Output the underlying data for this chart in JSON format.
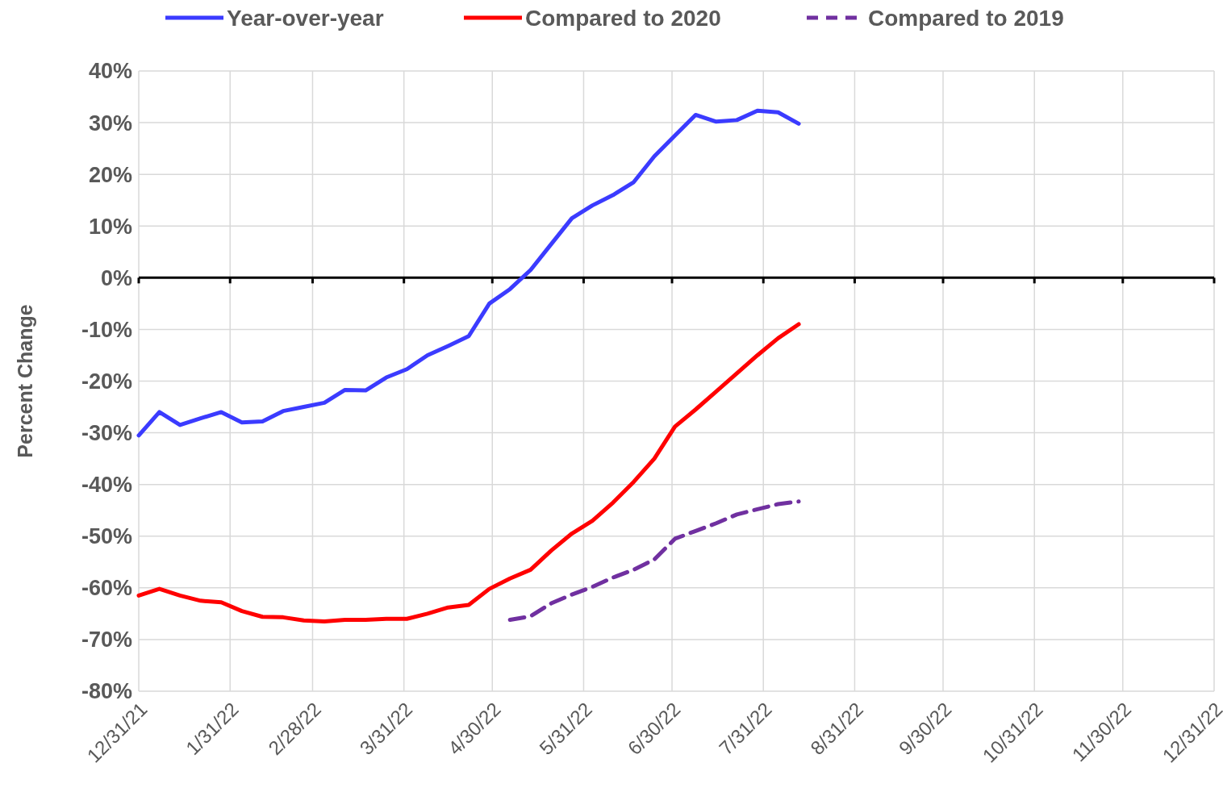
{
  "chart_data": {
    "type": "line",
    "ylabel": "Percent Change",
    "x": [
      "2021-12-31",
      "2022-01-07",
      "2022-01-14",
      "2022-01-21",
      "2022-01-28",
      "2022-02-04",
      "2022-02-11",
      "2022-02-18",
      "2022-02-25",
      "2022-03-04",
      "2022-03-11",
      "2022-03-18",
      "2022-03-25",
      "2022-04-01",
      "2022-04-08",
      "2022-04-15",
      "2022-04-22",
      "2022-04-29",
      "2022-05-06",
      "2022-05-13",
      "2022-05-20",
      "2022-05-27",
      "2022-06-03",
      "2022-06-10",
      "2022-06-17",
      "2022-06-24",
      "2022-07-01",
      "2022-07-08",
      "2022-07-15",
      "2022-07-22",
      "2022-07-29",
      "2022-08-05",
      "2022-08-12"
    ],
    "series": [
      {
        "name": "Year-over-year",
        "color": "#3b3bff",
        "line_style": "solid",
        "values": [
          -30.5,
          -26,
          -28.5,
          -27.2,
          -26,
          -28,
          -27.8,
          -25.8,
          -25,
          -24.2,
          -21.7,
          -21.8,
          -19.3,
          -17.7,
          -15,
          -13.2,
          -11.3,
          -5,
          -2.2,
          1.5,
          6.5,
          11.5,
          14,
          16,
          18.5,
          23.5,
          27.5,
          31.5,
          30.2,
          30.5,
          32.3,
          32,
          29.8
        ]
      },
      {
        "name": "Compared to 2020",
        "color": "#ff0000",
        "line_style": "solid",
        "values": [
          -61.5,
          -60.2,
          -61.5,
          -62.5,
          -62.8,
          -64.5,
          -65.6,
          -65.7,
          -66.3,
          -66.5,
          -66.2,
          -66.2,
          -66,
          -66,
          -65,
          -63.8,
          -63.3,
          -60.2,
          -58.2,
          -56.5,
          -52.8,
          -49.5,
          -47,
          -43.5,
          -39.5,
          -35,
          -28.8,
          -25.5,
          -22,
          -18.5,
          -15,
          -11.7,
          -9
        ]
      },
      {
        "name": "Compared to 2019",
        "color": "#7030a0",
        "line_style": "dashed",
        "values": [
          null,
          null,
          null,
          null,
          null,
          null,
          null,
          null,
          null,
          null,
          null,
          null,
          null,
          null,
          null,
          null,
          null,
          null,
          -66.2,
          -65.5,
          -63,
          -61.3,
          -59.8,
          -58,
          -56.5,
          -54.5,
          -50.5,
          -49,
          -47.5,
          -45.8,
          -44.8,
          -43.8,
          -43.3
        ]
      }
    ],
    "xlim": [
      "2021-12-31",
      "2022-12-31"
    ],
    "xticks": [
      {
        "value": "2021-12-31",
        "label": "12/31/21"
      },
      {
        "value": "2022-01-31",
        "label": "1/31/22"
      },
      {
        "value": "2022-02-28",
        "label": "2/28/22"
      },
      {
        "value": "2022-03-31",
        "label": "3/31/22"
      },
      {
        "value": "2022-04-30",
        "label": "4/30/22"
      },
      {
        "value": "2022-05-31",
        "label": "5/31/22"
      },
      {
        "value": "2022-06-30",
        "label": "6/30/22"
      },
      {
        "value": "2022-07-31",
        "label": "7/31/22"
      },
      {
        "value": "2022-08-31",
        "label": "8/31/22"
      },
      {
        "value": "2022-09-30",
        "label": "9/30/22"
      },
      {
        "value": "2022-10-31",
        "label": "10/31/22"
      },
      {
        "value": "2022-11-30",
        "label": "11/30/22"
      },
      {
        "value": "2022-12-31",
        "label": "12/31/22"
      }
    ],
    "ylim": [
      -80,
      40
    ],
    "yticks": [
      {
        "value": 40,
        "label": "40%"
      },
      {
        "value": 30,
        "label": "30%"
      },
      {
        "value": 20,
        "label": "20%"
      },
      {
        "value": 10,
        "label": "10%"
      },
      {
        "value": 0,
        "label": "0%"
      },
      {
        "value": -10,
        "label": "-10%"
      },
      {
        "value": -20,
        "label": "-20%"
      },
      {
        "value": -30,
        "label": "-30%"
      },
      {
        "value": -40,
        "label": "-40%"
      },
      {
        "value": -50,
        "label": "-50%"
      },
      {
        "value": -60,
        "label": "-60%"
      },
      {
        "value": -70,
        "label": "-70%"
      },
      {
        "value": -80,
        "label": "-80%"
      }
    ],
    "grid": true,
    "legend": "top",
    "marker": "none"
  }
}
